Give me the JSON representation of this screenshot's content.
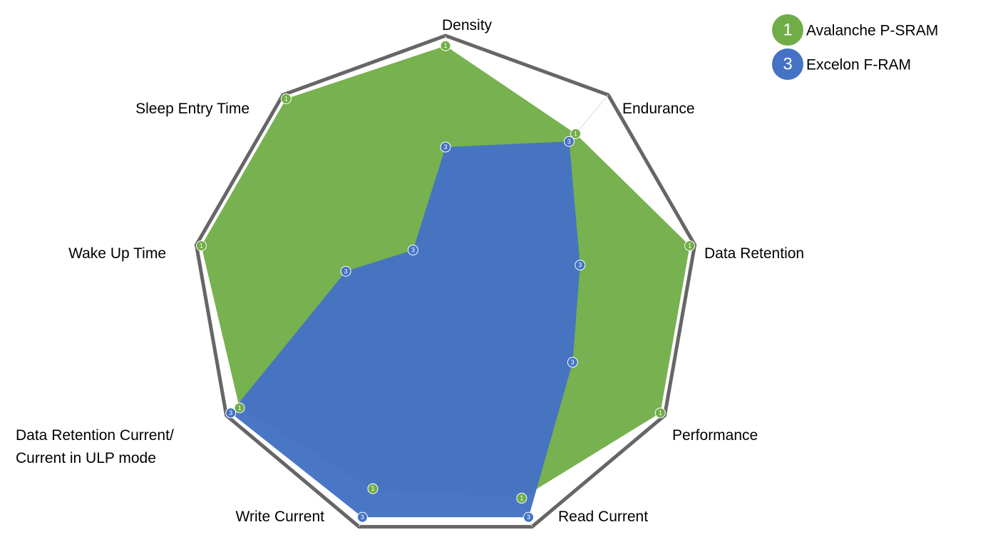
{
  "chart_data": {
    "type": "radar",
    "categories": [
      "Density",
      "Endurance",
      "Data Retention",
      "Performance",
      "Read Current",
      "Write Current",
      "Data Retention Current/\nCurrent in ULP mode",
      "Wake Up Time",
      "Sleep Entry Time"
    ],
    "series": [
      {
        "name": "Avalanche P-SRAM",
        "marker_label": "1",
        "color": "#70ad47",
        "values": [
          4.8,
          4,
          4.9,
          4.9,
          4.4,
          4.2,
          4.7,
          4.9,
          4.9
        ]
      },
      {
        "name": "Excelon F-RAM",
        "marker_label": "3",
        "color": "#4472c4",
        "values": [
          2.8,
          3.8,
          2.7,
          2.9,
          4.8,
          4.8,
          4.9,
          2,
          1
        ]
      }
    ],
    "rlim": [
      0,
      5
    ],
    "rticks": [
      1,
      2,
      3,
      4,
      5
    ],
    "grid": true,
    "legend": "upper right"
  }
}
